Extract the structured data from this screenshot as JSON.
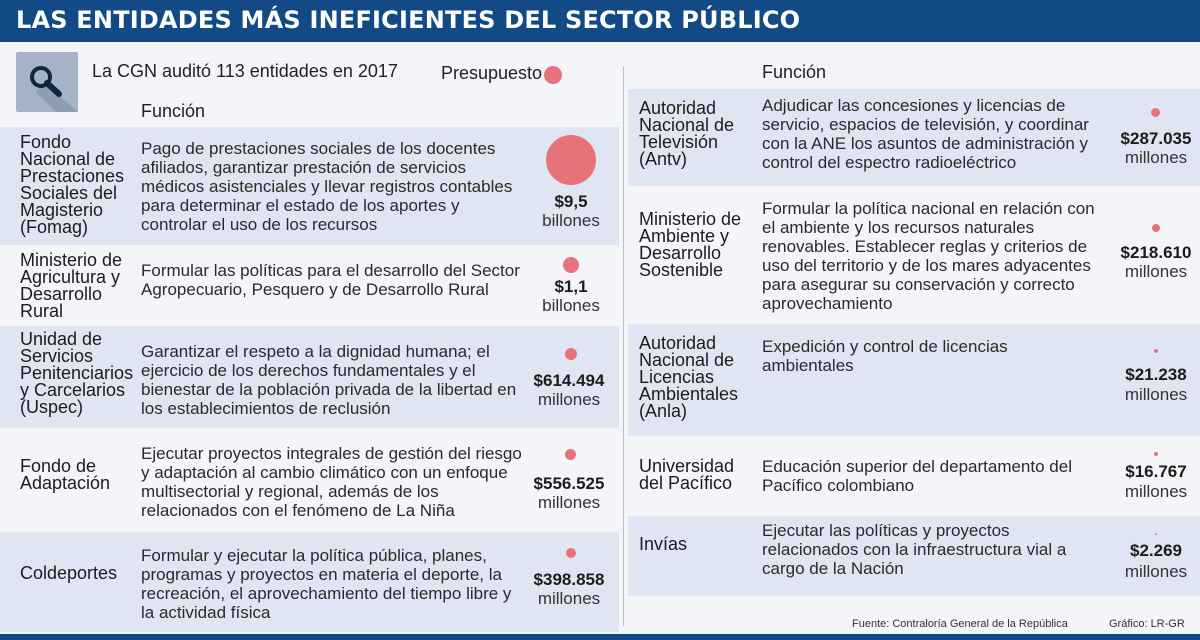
{
  "title": "LAS ENTIDADES MÁS INEFICIENTES DEL SECTOR PÚBLICO",
  "intro": "La CGN auditó 113 entidades en 2017",
  "legend_label": "Presupuesto",
  "column_header": "Función",
  "colors": {
    "header": "#114a84",
    "row_band": "#dfe5f3",
    "bubble": "#e8727c"
  },
  "icons": {
    "search": "search-icon",
    "legend": "budget-bubble-icon"
  },
  "left_rows": [
    {
      "name": "Fondo Nacional de Prestaciones Sociales del Magisterio (Fomag)",
      "function": "Pago de prestaciones sociales de los docentes afiliados, garantizar prestación de servicios médicos asistenciales y llevar registros contables para determinar el estado de los aportes y controlar el uso de los recursos",
      "amount": "$9,5",
      "unit": "billones"
    },
    {
      "name": "Ministerio de Agricultura y Desarrollo Rural",
      "function": "Formular las políticas para el desarrollo del Sector Agropecuario, Pesquero y de Desarrollo Rural",
      "amount": "$1,1",
      "unit": "billones"
    },
    {
      "name": "Unidad de Servicios Penitenciarios y Carcelarios (Uspec)",
      "function": "Garantizar el respeto a la dignidad humana; el ejercicio de los derechos fundamentales y el bienestar de la población privada de la libertad en los establecimientos de reclusión",
      "amount": "$614.494",
      "unit": "millones"
    },
    {
      "name": "Fondo de Adaptación",
      "function": "Ejecutar proyectos integrales de gestión del riesgo y adaptación al cambio climático con un enfoque multisectorial y regional, además de los relacionados con el fenómeno de La Niña",
      "amount": "$556.525",
      "unit": "millones"
    },
    {
      "name": "Coldeportes",
      "function": "Formular y ejecutar la política pública, planes, programas y proyectos en materia el deporte, la recreación, el aprovechamiento del tiempo libre y la actividad física",
      "amount": "$398.858",
      "unit": "millones"
    }
  ],
  "right_rows": [
    {
      "name": "Autoridad Nacional de Televisión (Antv)",
      "function": "Adjudicar las concesiones y licencias de servicio, espacios de televisión, y coordinar con la ANE los asuntos de administración y control del espectro radioeléctrico",
      "amount": "$287.035",
      "unit": "millones"
    },
    {
      "name": "Ministerio de Ambiente y Desarrollo Sostenible",
      "function": "Formular la política nacional en relación con el ambiente y los recursos naturales renovables. Establecer reglas y criterios de uso del territorio y de los mares adyacentes para asegurar su conservación y correcto aprovechamiento",
      "amount": "$218.610",
      "unit": "millones"
    },
    {
      "name": "Autoridad Nacional de Licencias Ambientales (Anla)",
      "function": "Expedición y control de licencias ambientales",
      "amount": "$21.238",
      "unit": "millones"
    },
    {
      "name": "Universidad del Pacífico",
      "function": "Educación superior del departamento del Pacífico colombiano",
      "amount": "$16.767",
      "unit": "millones"
    },
    {
      "name": "Invías",
      "function": "Ejecutar las políticas y proyectos relacionados con la infraestructura vial a cargo de la Nación",
      "amount": "$2.269",
      "unit": "millones"
    }
  ],
  "source": "Fuente: Contraloría General de la República",
  "credit": "Gráfico: LR-GR"
}
